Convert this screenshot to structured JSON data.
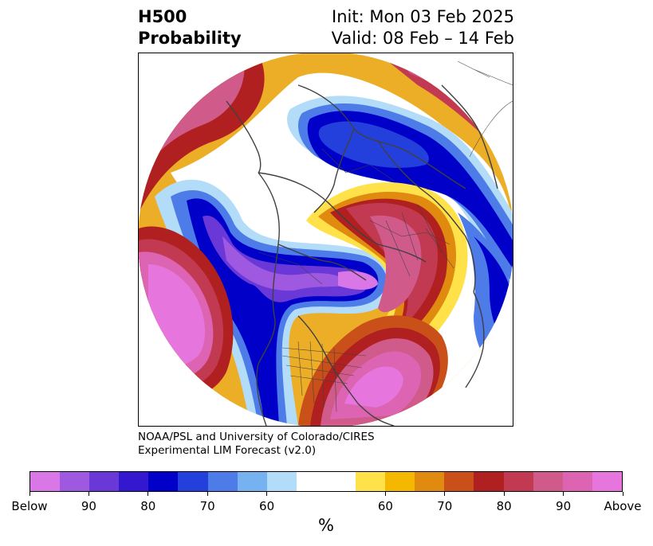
{
  "title": {
    "left_line1": "H500",
    "left_line2": "Probability",
    "right_line1": "Init: Mon 03 Feb 2025",
    "right_line2": "Valid: 08 Feb – 14 Feb"
  },
  "credit": {
    "line1": "NOAA/PSL and University of Colorado/CIRES",
    "line2": "Experimental LIM Forecast (v2.0)"
  },
  "colorbar": {
    "units": "%",
    "colors": [
      "#d977e6",
      "#9e59e0",
      "#6a38d6",
      "#3418d0",
      "#0000c8",
      "#2340dc",
      "#4d7be8",
      "#76b2f0",
      "#b2dcf8",
      "#ffffff",
      "#ffe14a",
      "#f4b800",
      "#e08a10",
      "#c95018",
      "#b02020",
      "#c23a52",
      "#d05a8a",
      "#dd64b3",
      "#e676dd"
    ],
    "wide_index": 9,
    "tick_labels": [
      "Below",
      "90",
      "80",
      "70",
      "60",
      "60",
      "70",
      "80",
      "90",
      "Above"
    ]
  },
  "map": {
    "projection": "north-polar-stereographic",
    "features": [
      "coastlines",
      "country-borders",
      "state-provinces"
    ]
  }
}
